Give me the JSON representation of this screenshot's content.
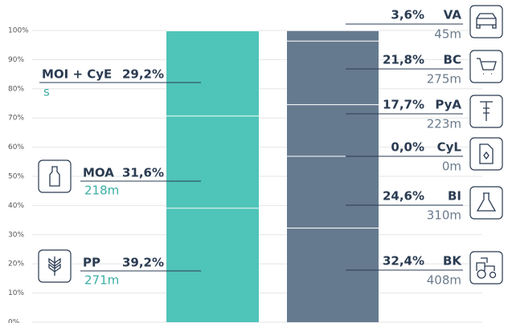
{
  "chart_data": {
    "type": "stacked_bar",
    "ylim": [
      0,
      100
    ],
    "yticks": [
      {
        "value": 0,
        "label": "0%"
      },
      {
        "value": 10,
        "label": "10%"
      },
      {
        "value": 20,
        "label": "20%"
      },
      {
        "value": 30,
        "label": "30%"
      },
      {
        "value": 40,
        "label": "40%"
      },
      {
        "value": 50,
        "label": "50%"
      },
      {
        "value": 60,
        "label": "60%"
      },
      {
        "value": 70,
        "label": "70%"
      },
      {
        "value": 80,
        "label": "80%"
      },
      {
        "value": 90,
        "label": "90%"
      },
      {
        "value": 100,
        "label": "100%"
      }
    ],
    "grid": true,
    "bars": [
      {
        "color": "#4fc4b8",
        "sub_color": "#3aaea3",
        "segments": [
          {
            "name": "PP",
            "value": 39.2,
            "value_label": "39,2%",
            "sub_label": "271m"
          },
          {
            "name": "MOA",
            "value": 31.6,
            "value_label": "31,6%",
            "sub_label": "218m"
          },
          {
            "name": "MOI + CyE",
            "value": 29.2,
            "value_label": "29,2%",
            "sub_label": "s"
          }
        ]
      },
      {
        "color": "#667a8f",
        "sub_color": "#6b7b8c",
        "segments": [
          {
            "name": "BK",
            "value": 32.4,
            "value_label": "32,4%",
            "sub_label": "408m"
          },
          {
            "name": "BI",
            "value": 24.6,
            "value_label": "24,6%",
            "sub_label": "310m"
          },
          {
            "name": "CyL",
            "value": 0.0,
            "value_label": "0,0%",
            "sub_label": "0m"
          },
          {
            "name": "PyA",
            "value": 17.7,
            "value_label": "17,7%",
            "sub_label": "223m"
          },
          {
            "name": "BC",
            "value": 21.8,
            "value_label": "21,8%",
            "sub_label": "275m"
          },
          {
            "name": "VA",
            "value": 3.6,
            "value_label": "3,6%",
            "sub_label": "45m"
          }
        ]
      }
    ]
  }
}
